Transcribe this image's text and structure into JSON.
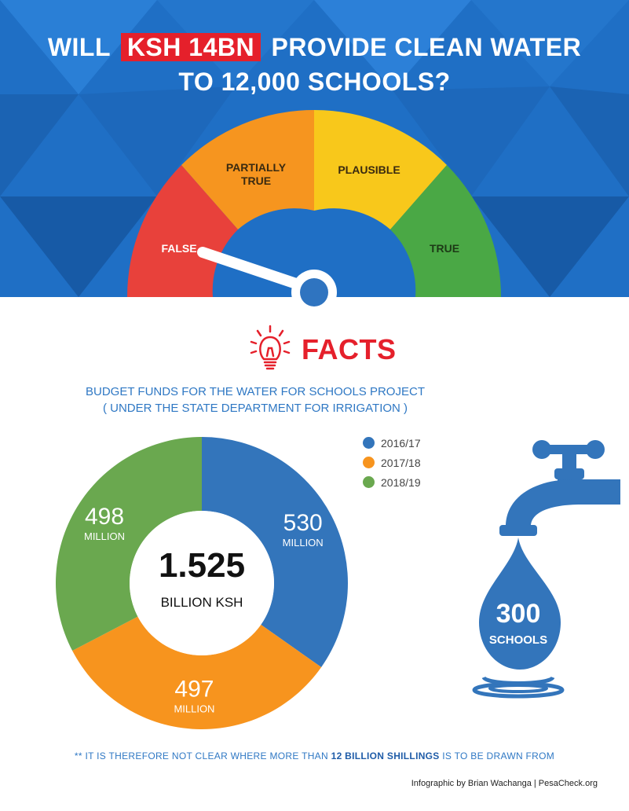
{
  "title": {
    "part1": "WILL",
    "highlight": "KSH 14BN",
    "part2": "PROVIDE CLEAN WATER",
    "line2": "TO 12,000 SCHOOLS?"
  },
  "gauge": {
    "segments": [
      {
        "label_line1": "FALSE",
        "label_line2": "",
        "color": "#e8413b"
      },
      {
        "label_line1": "PARTIALLY",
        "label_line2": "TRUE",
        "color": "#f6951f"
      },
      {
        "label_line1": "PLAUSIBLE",
        "label_line2": "",
        "color": "#f8c81b"
      },
      {
        "label_line1": "TRUE",
        "label_line2": "",
        "color": "#4aa845"
      }
    ],
    "verdict": "FALSE"
  },
  "facts_heading": "FACTS",
  "subtitle_line1": "BUDGET FUNDS FOR THE WATER  FOR SCHOOLS PROJECT",
  "subtitle_line2": "( UNDER THE STATE DEPARTMENT FOR IRRIGATION )",
  "chart_data": {
    "type": "pie",
    "title": "BUDGET FUNDS FOR THE WATER  FOR SCHOOLS PROJECT",
    "categories": [
      "2016/17",
      "2017/18",
      "2018/19"
    ],
    "values": [
      530,
      497,
      498
    ],
    "value_labels": [
      "530",
      "497",
      "498"
    ],
    "unit_label": "MILLION",
    "colors": [
      "#3375bb",
      "#f7941e",
      "#6aa84f"
    ],
    "center_value": "1.525",
    "center_unit": "BILLION KSH",
    "legend_position": "top-right"
  },
  "tap": {
    "number": "300",
    "label": "SCHOOLS",
    "color": "#3375bb"
  },
  "footnote": {
    "prefix": "** IT IS THEREFORE NOT CLEAR WHERE MORE THAN",
    "bold": "12 BILLION SHILLINGS",
    "suffix": "IS TO BE DRAWN FROM"
  },
  "credit": "Infographic by Brian Wachanga | PesaCheck.org"
}
